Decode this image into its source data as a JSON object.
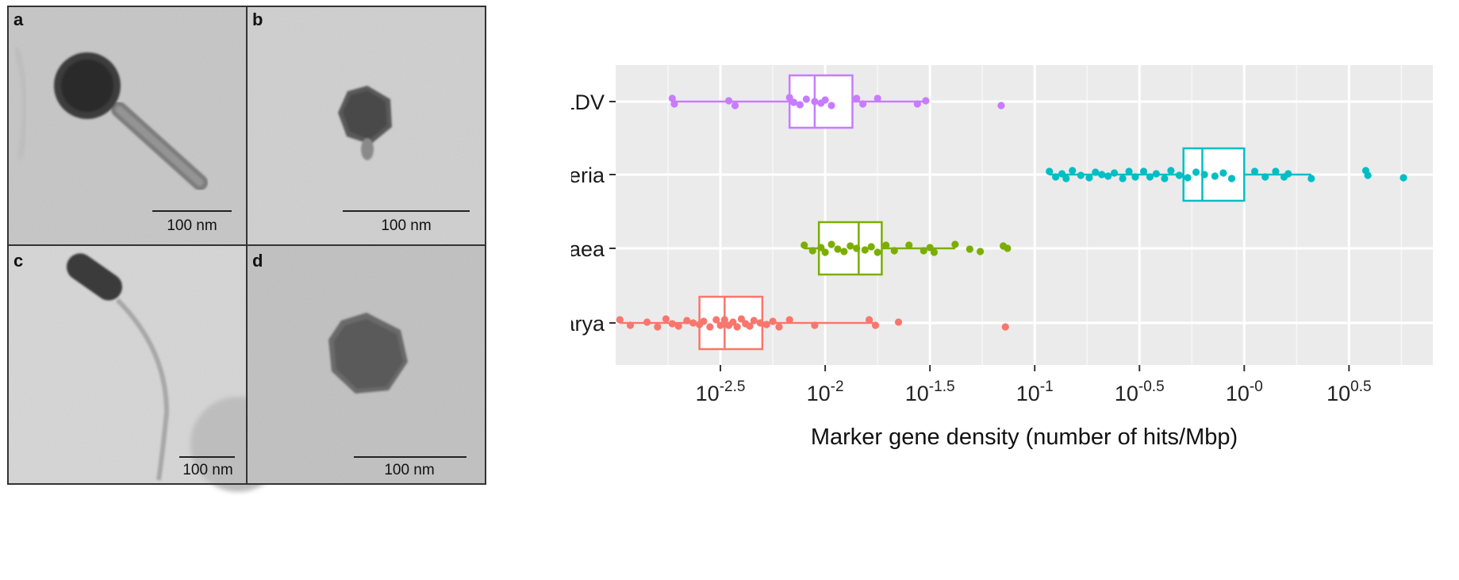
{
  "micrographs": [
    {
      "letter": "a",
      "scale": "100 nm"
    },
    {
      "letter": "b",
      "scale": "100 nm"
    },
    {
      "letter": "c",
      "scale": "100 nm"
    },
    {
      "letter": "d",
      "scale": "100 nm"
    }
  ],
  "chart_data": {
    "type": "boxplot",
    "orientation": "horizontal",
    "xlabel": "Marker gene density (number of hits/Mbp)",
    "x_scale": "log10",
    "xlim": [
      -3.0,
      0.9
    ],
    "x_ticks": [
      {
        "value": -2.5,
        "base": "10",
        "exp": "-2.5"
      },
      {
        "value": -2.0,
        "base": "10",
        "exp": "-2"
      },
      {
        "value": -1.5,
        "base": "10",
        "exp": "-1.5"
      },
      {
        "value": -1.0,
        "base": "10",
        "exp": "-1"
      },
      {
        "value": -0.5,
        "base": "10",
        "exp": "-0.5"
      },
      {
        "value": 0.0,
        "base": "10",
        "exp": "-0"
      },
      {
        "value": 0.5,
        "base": "10",
        "exp": "0.5"
      }
    ],
    "grid": true,
    "legend": "none",
    "categories": [
      "NCLDV",
      "Bacteria",
      "Archaea",
      "Eucarya"
    ],
    "series": [
      {
        "name": "NCLDV",
        "color": "#C77CFF",
        "box": {
          "q1": -2.17,
          "median": -2.05,
          "q3": -1.87,
          "whisker_low": -2.73,
          "whisker_high": -1.52
        },
        "points_log10": [
          -2.73,
          -2.72,
          -2.46,
          -2.43,
          -2.17,
          -2.15,
          -2.12,
          -2.09,
          -2.05,
          -2.02,
          -2.0,
          -1.97,
          -1.85,
          -1.82,
          -1.75,
          -1.56,
          -1.52,
          -1.16
        ]
      },
      {
        "name": "Bacteria",
        "color": "#00BFC4",
        "box": {
          "q1": -0.29,
          "median": -0.2,
          "q3": 0.0,
          "whisker_low": -0.93,
          "whisker_high": 0.32
        },
        "points_log10": [
          -0.93,
          -0.9,
          -0.87,
          -0.85,
          -0.82,
          -0.78,
          -0.74,
          -0.71,
          -0.68,
          -0.65,
          -0.62,
          -0.58,
          -0.55,
          -0.52,
          -0.48,
          -0.45,
          -0.42,
          -0.38,
          -0.35,
          -0.31,
          -0.27,
          -0.23,
          -0.19,
          -0.14,
          -0.1,
          -0.06,
          0.05,
          0.1,
          0.15,
          0.19,
          0.21,
          0.32,
          0.58,
          0.59,
          0.76
        ]
      },
      {
        "name": "Archaea",
        "color": "#7CAE00",
        "box": {
          "q1": -2.03,
          "median": -1.84,
          "q3": -1.73,
          "whisker_low": -2.1,
          "whisker_high": -1.38
        },
        "points_log10": [
          -2.1,
          -2.06,
          -2.02,
          -2.0,
          -1.97,
          -1.94,
          -1.91,
          -1.88,
          -1.85,
          -1.81,
          -1.78,
          -1.75,
          -1.71,
          -1.67,
          -1.6,
          -1.53,
          -1.5,
          -1.48,
          -1.38,
          -1.31,
          -1.26,
          -1.15,
          -1.13
        ]
      },
      {
        "name": "Eucarya",
        "color": "#F8766D",
        "box": {
          "q1": -2.6,
          "median": -2.48,
          "q3": -2.3,
          "whisker_low": -2.98,
          "whisker_high": -1.77
        },
        "points_log10": [
          -2.98,
          -2.93,
          -2.85,
          -2.8,
          -2.76,
          -2.73,
          -2.7,
          -2.66,
          -2.63,
          -2.6,
          -2.58,
          -2.55,
          -2.52,
          -2.5,
          -2.48,
          -2.46,
          -2.44,
          -2.42,
          -2.4,
          -2.38,
          -2.36,
          -2.34,
          -2.31,
          -2.28,
          -2.25,
          -2.22,
          -2.17,
          -2.05,
          -1.79,
          -1.76,
          -1.65,
          -1.14
        ]
      }
    ]
  }
}
